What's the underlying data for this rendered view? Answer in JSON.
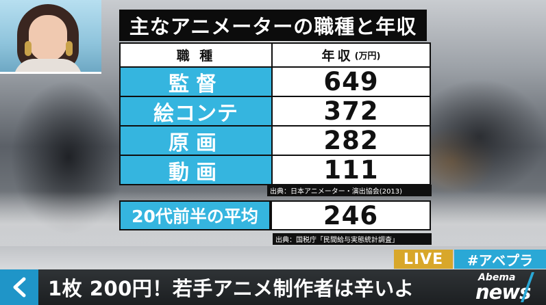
{
  "title": "主なアニメーターの職種と年収",
  "table": {
    "header": {
      "left": "職 種",
      "right": "年収",
      "unit": "(万円)"
    },
    "rows": [
      {
        "job": "監督",
        "salary": "649"
      },
      {
        "job": "絵コンテ",
        "salary": "372"
      },
      {
        "job": "原画",
        "salary": "282"
      },
      {
        "job": "動画",
        "salary": "111"
      }
    ],
    "source": "出典：日本アニメーター・演出協会(2013)"
  },
  "average": {
    "label": "20代前半の平均",
    "value": "246",
    "source": "出典：国税庁「民間給与実態統計調査」"
  },
  "badges": {
    "live": "LIVE",
    "hashtag": "#アベプラ"
  },
  "ticker": {
    "back_icon": "chevron-left-icon",
    "headline": "1枚 200円！若手アニメ制作者は辛いよ"
  },
  "logo": {
    "top": "Abema",
    "bottom": "news"
  },
  "colors": {
    "accent_blue": "#35b5df",
    "live_gold": "#d8a72a",
    "hashtag_blue": "#2aa8d6",
    "back_blue": "#1f95c8"
  }
}
